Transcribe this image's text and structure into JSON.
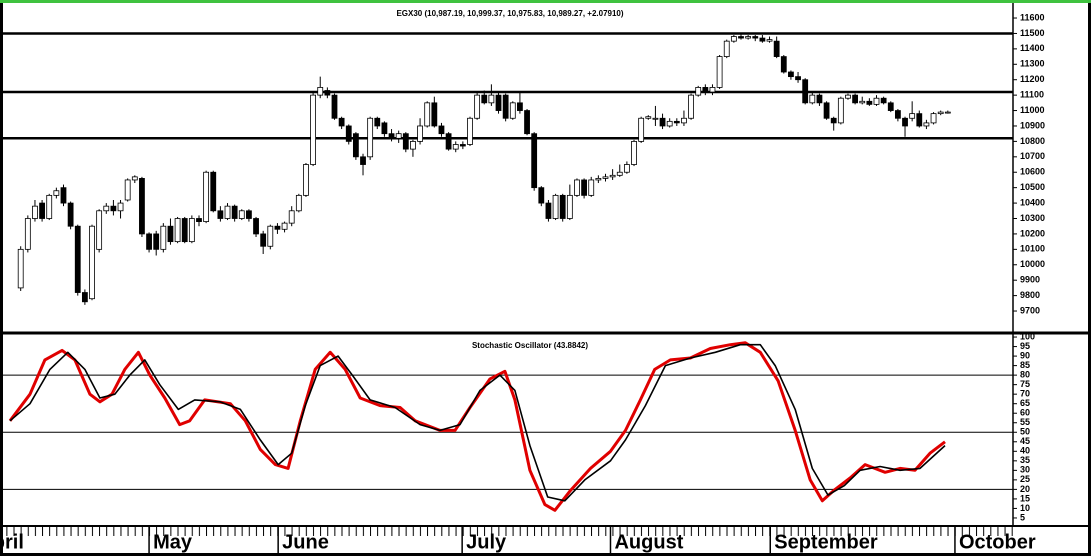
{
  "chart_data": [
    {
      "type": "candlestick",
      "title": "EGX30 (10,987.19, 10,999.37, 10,975.83, 10,989.27, +2.07910)",
      "xlim": [
        -1.5,
        139
      ],
      "ylim": [
        9577,
        11665
      ],
      "yticks": [
        9700,
        9800,
        9900,
        10000,
        10100,
        10200,
        10300,
        10400,
        10500,
        10600,
        10700,
        10800,
        10900,
        11000,
        11100,
        11200,
        11300,
        11400,
        11500,
        11600
      ],
      "hlines": [
        11500,
        11120,
        10820
      ],
      "up_color": "#ffffff",
      "down_color": "#000000",
      "ohlc": [
        [
          9850,
          10120,
          9830,
          10100
        ],
        [
          10100,
          10320,
          10080,
          10300
        ],
        [
          10300,
          10420,
          10280,
          10380
        ],
        [
          10400,
          10420,
          10280,
          10300
        ],
        [
          10300,
          10460,
          10290,
          10450
        ],
        [
          10450,
          10500,
          10430,
          10480
        ],
        [
          10500,
          10520,
          10380,
          10400
        ],
        [
          10400,
          10410,
          10230,
          10250
        ],
        [
          10250,
          10260,
          9800,
          9820
        ],
        [
          9820,
          9840,
          9740,
          9760
        ],
        [
          9780,
          10260,
          9770,
          10250
        ],
        [
          10100,
          10360,
          10080,
          10350
        ],
        [
          10350,
          10400,
          10330,
          10380
        ],
        [
          10380,
          10420,
          10320,
          10350
        ],
        [
          10350,
          10420,
          10300,
          10400
        ],
        [
          10420,
          10560,
          10410,
          10550
        ],
        [
          10550,
          10580,
          10530,
          10570
        ],
        [
          10560,
          10570,
          10180,
          10200
        ],
        [
          10200,
          10210,
          10080,
          10100
        ],
        [
          10200,
          10220,
          10060,
          10100
        ],
        [
          10100,
          10270,
          10080,
          10250
        ],
        [
          10250,
          10300,
          10130,
          10150
        ],
        [
          10150,
          10310,
          10140,
          10300
        ],
        [
          10300,
          10310,
          10140,
          10150
        ],
        [
          10150,
          10320,
          10140,
          10300
        ],
        [
          10300,
          10320,
          10250,
          10280
        ],
        [
          10280,
          10610,
          10270,
          10600
        ],
        [
          10600,
          10610,
          10340,
          10350
        ],
        [
          10350,
          10380,
          10280,
          10300
        ],
        [
          10300,
          10400,
          10290,
          10380
        ],
        [
          10380,
          10390,
          10280,
          10300
        ],
        [
          10300,
          10360,
          10290,
          10350
        ],
        [
          10350,
          10360,
          10280,
          10300
        ],
        [
          10300,
          10310,
          10180,
          10200
        ],
        [
          10200,
          10220,
          10070,
          10120
        ],
        [
          10120,
          10260,
          10100,
          10250
        ],
        [
          10250,
          10270,
          10200,
          10230
        ],
        [
          10230,
          10280,
          10210,
          10270
        ],
        [
          10270,
          10380,
          10250,
          10350
        ],
        [
          10350,
          10460,
          10340,
          10450
        ],
        [
          10450,
          10660,
          10440,
          10650
        ],
        [
          10650,
          11120,
          10640,
          11100
        ],
        [
          11100,
          11220,
          11080,
          11150
        ],
        [
          11130,
          11150,
          11080,
          11100
        ],
        [
          11100,
          11110,
          10940,
          10950
        ],
        [
          10950,
          10960,
          10880,
          10900
        ],
        [
          10900,
          10910,
          10780,
          10800
        ],
        [
          10850,
          10860,
          10680,
          10700
        ],
        [
          10700,
          10720,
          10580,
          10650
        ],
        [
          10700,
          10960,
          10680,
          10950
        ],
        [
          10950,
          10960,
          10880,
          10900
        ],
        [
          10920,
          10930,
          10830,
          10850
        ],
        [
          10850,
          10880,
          10800,
          10820
        ],
        [
          10820,
          10870,
          10790,
          10850
        ],
        [
          10850,
          10860,
          10730,
          10750
        ],
        [
          10750,
          10810,
          10700,
          10800
        ],
        [
          10800,
          10950,
          10780,
          10900
        ],
        [
          10900,
          11060,
          10890,
          11050
        ],
        [
          11050,
          11090,
          10890,
          10900
        ],
        [
          10900,
          10920,
          10830,
          10850
        ],
        [
          10850,
          10860,
          10740,
          10750
        ],
        [
          10750,
          10800,
          10730,
          10780
        ],
        [
          10780,
          10800,
          10750,
          10770
        ],
        [
          10780,
          10960,
          10770,
          10950
        ],
        [
          10950,
          11120,
          10940,
          11100
        ],
        [
          11100,
          11130,
          11040,
          11050
        ],
        [
          11050,
          11170,
          11030,
          11100
        ],
        [
          11100,
          11120,
          10980,
          11000
        ],
        [
          11100,
          11110,
          10930,
          10950
        ],
        [
          10950,
          11060,
          10940,
          11050
        ],
        [
          11050,
          11120,
          10980,
          11000
        ],
        [
          11000,
          11010,
          10840,
          10850
        ],
        [
          10850,
          10860,
          10480,
          10500
        ],
        [
          10500,
          10510,
          10380,
          10400
        ],
        [
          10400,
          10420,
          10280,
          10300
        ],
        [
          10300,
          10460,
          10290,
          10450
        ],
        [
          10450,
          10460,
          10280,
          10300
        ],
        [
          10300,
          10520,
          10290,
          10450
        ],
        [
          10450,
          10560,
          10440,
          10550
        ],
        [
          10550,
          10560,
          10430,
          10450
        ],
        [
          10450,
          10570,
          10440,
          10550
        ],
        [
          10550,
          10580,
          10530,
          10560
        ],
        [
          10560,
          10590,
          10540,
          10570
        ],
        [
          10570,
          10620,
          10550,
          10580
        ],
        [
          10580,
          10650,
          10570,
          10600
        ],
        [
          10600,
          10670,
          10590,
          10650
        ],
        [
          10650,
          10810,
          10640,
          10800
        ],
        [
          10800,
          10960,
          10790,
          10950
        ],
        [
          10950,
          10970,
          10940,
          10960
        ],
        [
          10950,
          11030,
          10900,
          10950
        ],
        [
          10950,
          10980,
          10880,
          10900
        ],
        [
          10900,
          10950,
          10890,
          10930
        ],
        [
          10930,
          10950,
          10900,
          10920
        ],
        [
          10920,
          11000,
          10900,
          10950
        ],
        [
          10950,
          11110,
          10940,
          11100
        ],
        [
          11100,
          11160,
          11090,
          11150
        ],
        [
          11150,
          11170,
          11100,
          11120
        ],
        [
          11120,
          11170,
          11100,
          11150
        ],
        [
          11150,
          11360,
          11140,
          11350
        ],
        [
          11350,
          11460,
          11340,
          11450
        ],
        [
          11450,
          11490,
          11440,
          11480
        ],
        [
          11480,
          11500,
          11460,
          11470
        ],
        [
          11470,
          11490,
          11460,
          11480
        ],
        [
          11480,
          11490,
          11450,
          11470
        ],
        [
          11470,
          11490,
          11440,
          11450
        ],
        [
          11450,
          11480,
          11440,
          11460
        ],
        [
          11450,
          11480,
          11340,
          11350
        ],
        [
          11350,
          11360,
          11240,
          11250
        ],
        [
          11250,
          11260,
          11200,
          11220
        ],
        [
          11220,
          11250,
          11180,
          11200
        ],
        [
          11200,
          11210,
          11040,
          11050
        ],
        [
          11050,
          11120,
          11040,
          11100
        ],
        [
          11100,
          11110,
          11030,
          11050
        ],
        [
          11050,
          11060,
          10940,
          10950
        ],
        [
          10950,
          10960,
          10870,
          10920
        ],
        [
          10920,
          11090,
          10910,
          11080
        ],
        [
          11080,
          11110,
          11070,
          11100
        ],
        [
          11100,
          11110,
          11040,
          11050
        ],
        [
          11050,
          11090,
          11040,
          11060
        ],
        [
          11060,
          11080,
          11030,
          11040
        ],
        [
          11040,
          11100,
          11030,
          11080
        ],
        [
          11080,
          11090,
          11040,
          11050
        ],
        [
          11050,
          11060,
          10990,
          11000
        ],
        [
          11000,
          11010,
          10930,
          10950
        ],
        [
          10950,
          10960,
          10830,
          10900
        ],
        [
          10950,
          11060,
          10930,
          10980
        ],
        [
          10980,
          11000,
          10890,
          10900
        ],
        [
          10900,
          10940,
          10880,
          10920
        ],
        [
          10920,
          10990,
          10910,
          10980
        ],
        [
          10980,
          11000,
          10970,
          10990
        ],
        [
          10990,
          11000,
          10980,
          10990
        ]
      ]
    },
    {
      "type": "line",
      "title": "Stochastic Oscillator (43.8842)",
      "xlim": [
        -1.5,
        139
      ],
      "ylim": [
        1.3,
        101.6
      ],
      "yticks": [
        5,
        10,
        15,
        20,
        25,
        30,
        35,
        40,
        45,
        50,
        55,
        60,
        65,
        70,
        75,
        80,
        85,
        90,
        95,
        100
      ],
      "hlines": [
        80,
        50,
        20
      ],
      "xticks": [
        {
          "value": -6.5,
          "label": "April"
        },
        {
          "value": 18,
          "label": "May"
        },
        {
          "value": 36.1,
          "label": "June"
        },
        {
          "value": 61.9,
          "label": "July"
        },
        {
          "value": 82.7,
          "label": "August"
        },
        {
          "value": 105.1,
          "label": "September"
        },
        {
          "value": 131,
          "label": "October"
        }
      ],
      "series": [
        {
          "color": "#e00000",
          "x": [
            -1.5,
            1.3,
            3.4,
            5.8,
            7.6,
            9.7,
            11.1,
            12.8,
            14.6,
            16.5,
            18.1,
            20.2,
            22.3,
            23.7,
            25.8,
            29.4,
            31.5,
            33.6,
            35.7,
            37.5,
            39.2,
            41.3,
            43.4,
            45.5,
            47.6,
            50.4,
            53.2,
            55.3,
            58.8,
            60.9,
            63,
            65.8,
            67.9,
            69.3,
            71.4,
            73.5,
            74.9,
            77,
            79.9,
            82.7,
            84.8,
            86.9,
            88.9,
            91.1,
            93.9,
            96.7,
            99.5,
            101.6,
            103.7,
            106.2,
            108.6,
            110.7,
            112.4,
            114.2,
            116.3,
            118.4,
            121.2,
            123.3,
            125.4,
            127.5,
            129.6
          ],
          "values": [
            56,
            70,
            88,
            93,
            88,
            70,
            66,
            70,
            83,
            92,
            80,
            68,
            54,
            56,
            67,
            65,
            56,
            41,
            33,
            31,
            56,
            83,
            92,
            83,
            68,
            64,
            63,
            56,
            51,
            51,
            63,
            78,
            82,
            67,
            30,
            12,
            9,
            19,
            31,
            40,
            51,
            67,
            83,
            88,
            89,
            94,
            96,
            97,
            92,
            77,
            51,
            25,
            14,
            20,
            26,
            33,
            29,
            31,
            30,
            39,
            45
          ]
        },
        {
          "color": "#000000",
          "x": [
            -1.5,
            1.3,
            4.1,
            6.6,
            9,
            11.1,
            13.2,
            15.3,
            17.4,
            19.5,
            22.1,
            24.4,
            27.9,
            30.8,
            33.6,
            36.1,
            38,
            39.9,
            42,
            44.5,
            46.5,
            49,
            52.5,
            56,
            58.8,
            61.6,
            64.4,
            67.2,
            69.3,
            71.4,
            73.9,
            76.3,
            79.1,
            82.7,
            84.8,
            87.6,
            90.4,
            93.9,
            97.4,
            100.9,
            103.7,
            105.8,
            108.6,
            111,
            113.2,
            115.5,
            117.7,
            120.5,
            123.3,
            126.1,
            129.6
          ],
          "values": [
            56,
            65,
            83,
            92,
            83,
            68,
            70,
            80,
            88,
            75,
            62,
            67,
            66,
            62,
            46,
            33,
            39,
            64,
            85,
            90,
            80,
            67,
            63,
            54,
            51,
            54,
            72,
            80,
            72,
            43,
            16,
            14,
            25,
            35,
            46,
            64,
            85,
            89,
            92,
            96,
            96,
            85,
            62,
            31,
            17,
            22,
            30,
            32,
            30,
            31,
            43
          ]
        }
      ]
    }
  ]
}
